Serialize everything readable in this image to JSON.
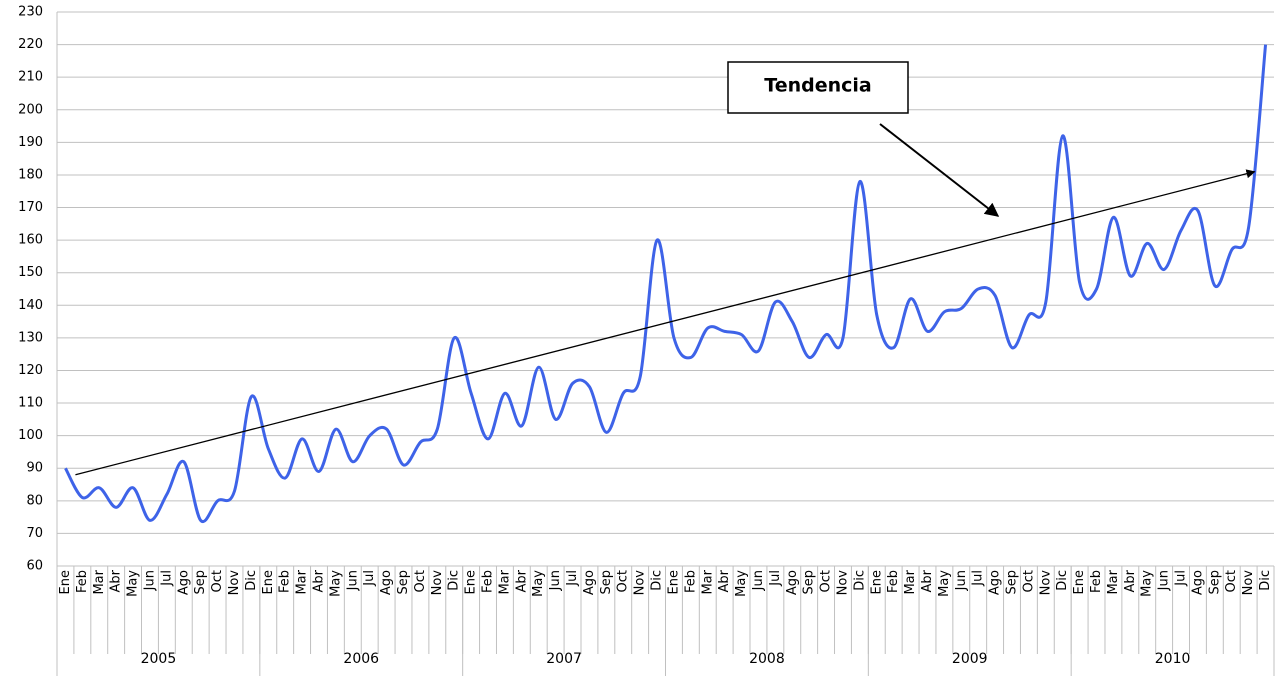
{
  "chart_data": {
    "type": "line",
    "categories": [
      "Ene",
      "Feb",
      "Mar",
      "Abr",
      "May",
      "Jun",
      "Jul",
      "Ago",
      "Sep",
      "Oct",
      "Nov",
      "Dic",
      "Ene",
      "Feb",
      "Mar",
      "Abr",
      "May",
      "Jun",
      "Jul",
      "Ago",
      "Sep",
      "Oct",
      "Nov",
      "Dic",
      "Ene",
      "Feb",
      "Mar",
      "Abr",
      "May",
      "Jun",
      "Jul",
      "Ago",
      "Sep",
      "Oct",
      "Nov",
      "Dic",
      "Ene",
      "Feb",
      "Mar",
      "Abr",
      "May",
      "Jun",
      "Jul",
      "Ago",
      "Sep",
      "Oct",
      "Nov",
      "Dic",
      "Ene",
      "Feb",
      "Mar",
      "Abr",
      "May",
      "Jun",
      "Jul",
      "Ago",
      "Sep",
      "Oct",
      "Nov",
      "Dic",
      "Ene",
      "Feb",
      "Mar",
      "Abr",
      "May",
      "Jun",
      "Jul",
      "Ago",
      "Sep",
      "Oct",
      "Nov",
      "Dic"
    ],
    "years": [
      "2005",
      "2006",
      "2007",
      "2008",
      "2009",
      "2010"
    ],
    "series": [
      {
        "color": "#3e63e8",
        "values": [
          90,
          81,
          84,
          78,
          84,
          74,
          82,
          92,
          74,
          80,
          83,
          112,
          96,
          87,
          99,
          89,
          102,
          92,
          100,
          102,
          91,
          98,
          102,
          130,
          113,
          99,
          113,
          103,
          121,
          105,
          116,
          115,
          101,
          113,
          118,
          160,
          130,
          124,
          133,
          132,
          131,
          126,
          141,
          135,
          124,
          131,
          130,
          178,
          137,
          127,
          142,
          132,
          138,
          139,
          145,
          143,
          127,
          137,
          141,
          192,
          147,
          145,
          167,
          149,
          159,
          151,
          163,
          169,
          146,
          157,
          164,
          220
        ]
      }
    ],
    "trend": {
      "values": [
        88,
        181
      ],
      "color": "#000000"
    },
    "annotation": "Tendencia",
    "ylim": [
      60,
      230
    ],
    "yticks": [
      60,
      70,
      80,
      90,
      100,
      110,
      120,
      130,
      140,
      150,
      160,
      170,
      180,
      190,
      200,
      210,
      220,
      230
    ],
    "grid": true
  }
}
